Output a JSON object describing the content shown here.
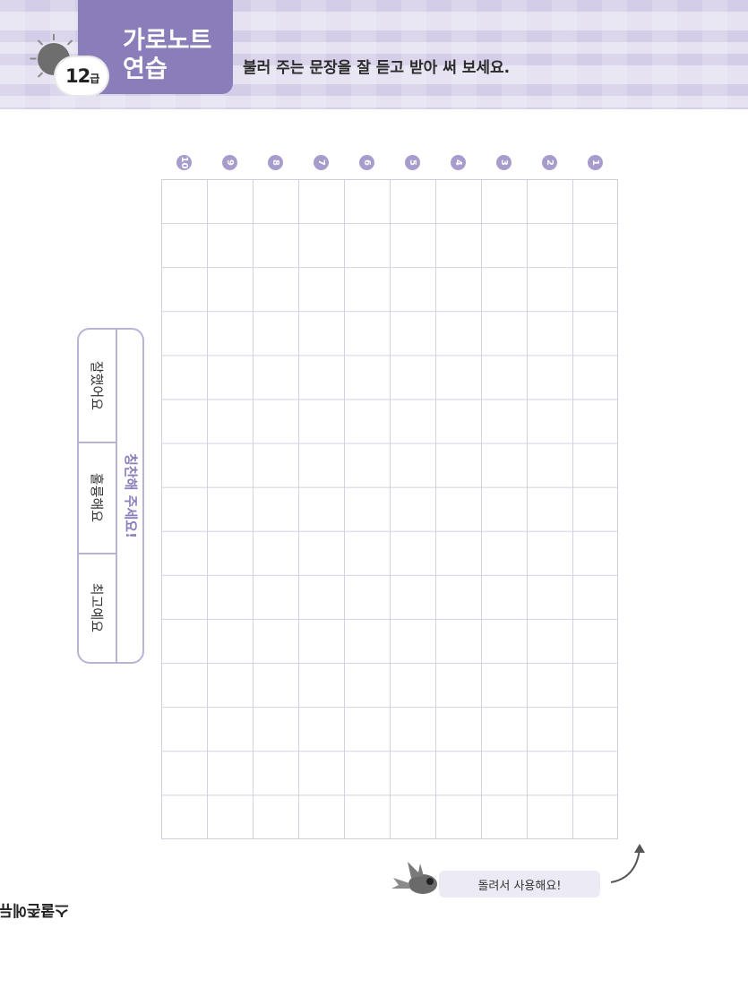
{
  "header": {
    "tab_title_line1": "가로노트",
    "tab_title_line2": "연습",
    "grade": "12",
    "grade_unit": "급",
    "instruction": "불러 주는 문장을 잘 듣고 받아 써 보세요."
  },
  "grid": {
    "columns": [
      "10",
      "9",
      "8",
      "7",
      "6",
      "5",
      "4",
      "3",
      "2",
      "1"
    ],
    "rows": 15
  },
  "praise": {
    "title": "칭찬해 주세요!",
    "options": [
      "잘했어요",
      "훌륭해요",
      "최고예요"
    ]
  },
  "footer": {
    "tip": "돌려서 사용해요!",
    "logo": "스쿨존에듀"
  },
  "colors": {
    "accent": "#8b7dba",
    "grid": "#d4d2e2"
  }
}
